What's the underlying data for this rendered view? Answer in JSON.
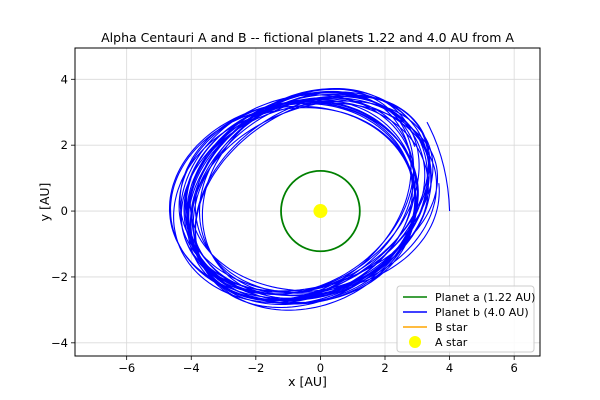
{
  "chart_data": {
    "type": "line",
    "title": "Alpha Centauri A and B -- fictional planets 1.22 and 4.0 AU from A",
    "xlabel": "x [AU]",
    "ylabel": "y [AU]",
    "xlim": [
      -7.6,
      6.8
    ],
    "ylim": [
      -4.4,
      4.95
    ],
    "x_ticks": [
      -6,
      -4,
      -2,
      0,
      2,
      4,
      6
    ],
    "x_tick_labels": [
      "−6",
      "−4",
      "−2",
      "0",
      "2",
      "4",
      "6"
    ],
    "y_ticks": [
      -4,
      -2,
      0,
      2,
      4
    ],
    "y_tick_labels": [
      "−4",
      "−2",
      "0",
      "2",
      "4"
    ],
    "grid": true,
    "legend_position": "lower-right",
    "series": [
      {
        "name": "Planet a (1.22 AU)",
        "color": "#008000",
        "kind": "circle",
        "center": [
          0,
          0
        ],
        "radius": 1.22
      },
      {
        "name": "Planet b (4.0 AU)",
        "color": "#0000ff",
        "kind": "precessing-orbit",
        "center_wobble": [
          [
            -0.65,
            0.55
          ],
          [
            -0.35,
            0.45
          ],
          [
            -0.15,
            0.35
          ],
          [
            -0.55,
            0.15
          ],
          [
            -0.85,
            0.25
          ],
          [
            -0.75,
            0.4
          ],
          [
            -0.4,
            0.55
          ],
          [
            -0.2,
            0.4
          ]
        ],
        "radii": [
          [
            2.85,
            3.8
          ],
          [
            2.7,
            3.95
          ],
          [
            2.95,
            3.85
          ],
          [
            3.1,
            3.55
          ],
          [
            2.9,
            3.7
          ],
          [
            3.0,
            3.9
          ],
          [
            2.8,
            3.65
          ],
          [
            2.95,
            3.75
          ]
        ],
        "start": [
          4.0,
          0.0
        ]
      },
      {
        "name": "B star",
        "color": "#ffa500",
        "kind": "line",
        "x": [],
        "y": []
      },
      {
        "name": "A star",
        "color": "#ffff00",
        "kind": "point",
        "x": [
          0
        ],
        "y": [
          0
        ]
      }
    ]
  }
}
